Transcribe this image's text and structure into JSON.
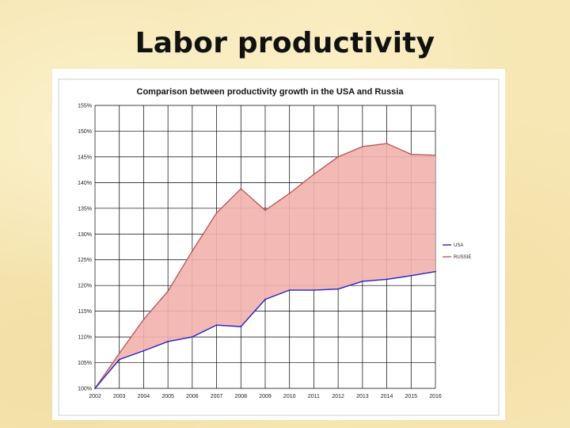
{
  "slide": {
    "title": "Labor productivity"
  },
  "chart_data": {
    "type": "area",
    "title": "Comparison between productivity growth in the USA and Russia",
    "x": [
      "2002",
      "2003",
      "2004",
      "2005",
      "2006",
      "2007",
      "2008",
      "2009",
      "2010",
      "2011",
      "2012",
      "2013",
      "2014",
      "2015",
      "2016"
    ],
    "series": [
      {
        "name": "USA",
        "values": [
          100,
          105.6,
          107.3,
          109.1,
          110.0,
          112.3,
          112.0,
          117.3,
          119.1,
          119.1,
          119.3,
          120.8,
          121.2,
          121.9,
          122.7
        ],
        "color": "#2222cc"
      },
      {
        "name": "RUSSIE",
        "values": [
          100,
          106.8,
          113.4,
          118.9,
          126.7,
          134.1,
          138.8,
          134.6,
          137.9,
          141.6,
          145.0,
          147.0,
          147.6,
          145.5,
          145.3
        ],
        "color": "#b85a5a"
      }
    ],
    "fill_between": {
      "color": "#f2b3ad"
    },
    "ylim": [
      100,
      155
    ],
    "yticks": [
      "100%",
      "105%",
      "110%",
      "115%",
      "120%",
      "125%",
      "130%",
      "135%",
      "140%",
      "145%",
      "150%",
      "155%"
    ],
    "xlabel": "",
    "ylabel": "",
    "grid": true,
    "legend": "right"
  }
}
